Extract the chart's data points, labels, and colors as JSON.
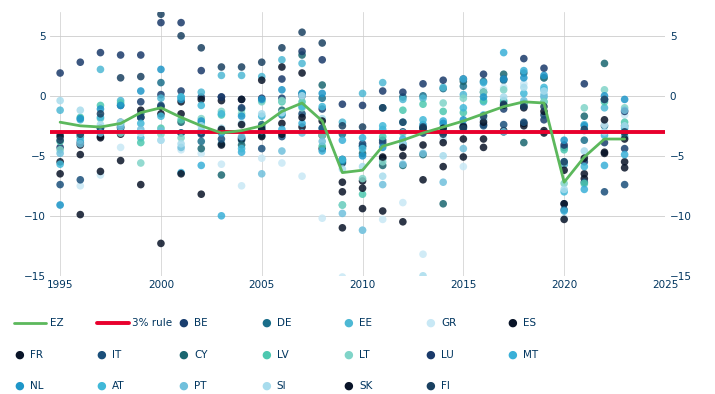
{
  "ylim": [
    -15,
    7
  ],
  "xlim": [
    1994.5,
    2025
  ],
  "yticks": [
    -15,
    -10,
    -5,
    0,
    5
  ],
  "xticks": [
    1995,
    2000,
    2005,
    2010,
    2015,
    2020,
    2025
  ],
  "rule_value": -3,
  "background_color": "#ffffff",
  "text_color": "#00355f",
  "fiscal_data": {
    "BE": {
      "years": [
        1995,
        1996,
        1997,
        1998,
        1999,
        2000,
        2001,
        2002,
        2003,
        2004,
        2005,
        2006,
        2007,
        2008,
        2009,
        2010,
        2011,
        2012,
        2013,
        2014,
        2015,
        2016,
        2017,
        2018,
        2019,
        2020,
        2021,
        2022,
        2023
      ],
      "values": [
        -4.3,
        -3.9,
        -3.1,
        -0.8,
        -0.5,
        0.1,
        0.4,
        -0.1,
        -0.1,
        -0.3,
        -2.6,
        -0.2,
        0.0,
        -1.1,
        -5.6,
        -4.0,
        -3.9,
        -4.2,
        -3.1,
        -3.1,
        -2.5,
        -2.4,
        -1.1,
        -0.8,
        -2.0,
        -9.0,
        -5.5,
        -3.9,
        -4.4
      ]
    },
    "DE": {
      "years": [
        1995,
        1996,
        1997,
        1998,
        1999,
        2000,
        2001,
        2002,
        2003,
        2004,
        2005,
        2006,
        2007,
        2008,
        2009,
        2010,
        2011,
        2012,
        2013,
        2014,
        2015,
        2016,
        2017,
        2018,
        2019,
        2020,
        2021,
        2022,
        2023
      ],
      "values": [
        -3.2,
        -3.4,
        -2.7,
        -2.2,
        -1.5,
        1.1,
        -3.1,
        -3.8,
        -4.0,
        -3.7,
        -3.3,
        -1.6,
        0.2,
        -0.2,
        -3.2,
        -4.2,
        -1.0,
        -0.1,
        0.0,
        0.6,
        0.8,
        1.2,
        1.3,
        1.9,
        1.5,
        -4.3,
        -3.7,
        -2.5,
        -2.5
      ]
    },
    "EE": {
      "years": [
        1995,
        1996,
        1997,
        1998,
        1999,
        2000,
        2001,
        2002,
        2003,
        2004,
        2005,
        2006,
        2007,
        2008,
        2009,
        2010,
        2011,
        2012,
        2013,
        2014,
        2015,
        2016,
        2017,
        2018,
        2019,
        2020,
        2021,
        2022,
        2023
      ],
      "values": [
        -1.2,
        -2.0,
        2.2,
        -0.4,
        -3.5,
        -0.2,
        -0.1,
        0.3,
        1.7,
        1.7,
        1.6,
        3.0,
        2.7,
        -2.7,
        -2.2,
        0.2,
        1.1,
        -0.3,
        -0.2,
        0.7,
        0.1,
        -0.5,
        -0.4,
        -0.6,
        -0.1,
        -5.5,
        -2.4,
        -1.0,
        -3.4
      ]
    },
    "GR": {
      "years": [
        1995,
        1996,
        1997,
        1998,
        1999,
        2000,
        2001,
        2002,
        2003,
        2004,
        2005,
        2006,
        2007,
        2008,
        2009,
        2010,
        2011,
        2012,
        2013,
        2014,
        2015,
        2016,
        2017,
        2018,
        2019,
        2020,
        2021,
        2022,
        2023
      ],
      "values": [
        -9.1,
        -7.5,
        -6.6,
        -4.3,
        -3.1,
        -3.7,
        -4.5,
        -4.8,
        -5.7,
        -7.5,
        -5.2,
        -5.6,
        -6.7,
        -10.2,
        -15.1,
        -11.2,
        -10.3,
        -8.9,
        -13.2,
        -3.6,
        -5.9,
        0.5,
        0.7,
        1.0,
        1.5,
        -10.2,
        -7.4,
        -2.4,
        -1.6
      ]
    },
    "ES": {
      "years": [
        1995,
        1996,
        1997,
        1998,
        1999,
        2000,
        2001,
        2002,
        2003,
        2004,
        2005,
        2006,
        2007,
        2008,
        2009,
        2010,
        2011,
        2012,
        2013,
        2014,
        2015,
        2016,
        2017,
        2018,
        2019,
        2020,
        2021,
        2022,
        2023
      ],
      "values": [
        -6.5,
        -4.9,
        -3.4,
        -3.2,
        -1.2,
        -0.9,
        -0.5,
        -0.3,
        -0.4,
        -0.3,
        1.3,
        2.4,
        1.9,
        -4.4,
        -11.0,
        -9.4,
        -9.6,
        -10.5,
        -7.0,
        -5.9,
        -5.1,
        -4.3,
        -3.0,
        -2.5,
        -2.9,
        -10.3,
        -6.9,
        -4.8,
        -3.6
      ]
    },
    "FR": {
      "years": [
        1995,
        1996,
        1997,
        1998,
        1999,
        2000,
        2001,
        2002,
        2003,
        2004,
        2005,
        2006,
        2007,
        2008,
        2009,
        2010,
        2011,
        2012,
        2013,
        2014,
        2015,
        2016,
        2017,
        2018,
        2019,
        2020,
        2021,
        2022,
        2023
      ],
      "values": [
        -5.5,
        -4.1,
        -3.5,
        -2.6,
        -1.8,
        -1.5,
        -1.5,
        -3.1,
        -4.1,
        -3.6,
        -3.4,
        -2.3,
        -2.6,
        -3.3,
        -7.2,
        -7.1,
        -5.2,
        -5.0,
        -4.1,
        -3.9,
        -3.6,
        -3.6,
        -2.9,
        -2.3,
        -3.1,
        -9.0,
        -6.5,
        -4.7,
        -5.5
      ]
    },
    "IT": {
      "years": [
        1995,
        1996,
        1997,
        1998,
        1999,
        2000,
        2001,
        2002,
        2003,
        2004,
        2005,
        2006,
        2007,
        2008,
        2009,
        2010,
        2011,
        2012,
        2013,
        2014,
        2015,
        2016,
        2017,
        2018,
        2019,
        2020,
        2021,
        2022,
        2023
      ],
      "values": [
        -7.4,
        -7.0,
        -2.7,
        -2.7,
        -1.8,
        -0.8,
        -3.1,
        -3.2,
        -3.6,
        -3.5,
        -4.4,
        -3.4,
        -1.5,
        -2.7,
        -5.3,
        -4.2,
        -3.7,
        -3.0,
        -2.9,
        -3.0,
        -2.6,
        -2.5,
        -2.4,
        -2.2,
        -1.6,
        -9.5,
        -7.2,
        -8.0,
        -7.4
      ]
    },
    "CY": {
      "years": [
        2001,
        2002,
        2003,
        2004,
        2005,
        2006,
        2007,
        2008,
        2009,
        2010,
        2011,
        2012,
        2013,
        2014,
        2015,
        2016,
        2017,
        2018,
        2019,
        2020,
        2021,
        2022,
        2023
      ],
      "values": [
        -2.2,
        -4.4,
        -6.6,
        -4.1,
        -2.4,
        -1.2,
        3.4,
        0.9,
        -5.5,
        -4.8,
        -5.8,
        -5.8,
        -4.9,
        -9.0,
        1.2,
        0.3,
        1.8,
        -3.9,
        1.5,
        -5.7,
        -1.7,
        2.7,
        -3.1
      ]
    },
    "LV": {
      "years": [
        1995,
        1996,
        1997,
        1998,
        1999,
        2000,
        2001,
        2002,
        2003,
        2004,
        2005,
        2006,
        2007,
        2008,
        2009,
        2010,
        2011,
        2012,
        2013,
        2014,
        2015,
        2016,
        2017,
        2018,
        2019,
        2020,
        2021,
        2022,
        2023
      ],
      "values": [
        -3.8,
        -1.8,
        -0.8,
        -0.6,
        -3.9,
        -2.7,
        -2.0,
        -2.3,
        -1.6,
        -1.1,
        -0.4,
        -0.5,
        -0.5,
        -4.2,
        -9.1,
        -8.2,
        -3.4,
        -1.2,
        -0.7,
        -1.3,
        -1.4,
        -0.4,
        -0.5,
        -0.7,
        -0.5,
        -4.5,
        -7.3,
        -0.5,
        -2.2
      ]
    },
    "LT": {
      "years": [
        1995,
        1996,
        1997,
        1998,
        1999,
        2000,
        2001,
        2002,
        2003,
        2004,
        2005,
        2006,
        2007,
        2008,
        2009,
        2010,
        2011,
        2012,
        2013,
        2014,
        2015,
        2016,
        2017,
        2018,
        2019,
        2020,
        2021,
        2022,
        2023
      ],
      "values": [
        -4.5,
        -3.3,
        -1.9,
        -3.1,
        -5.6,
        -3.2,
        -3.5,
        -1.9,
        -1.3,
        -1.5,
        -0.5,
        -0.4,
        -1.0,
        -3.3,
        -9.1,
        -6.9,
        -5.5,
        -3.1,
        -2.6,
        -0.6,
        -0.2,
        0.3,
        0.5,
        -0.8,
        -0.5,
        -7.3,
        -1.0,
        0.5,
        -1.0
      ]
    },
    "LU": {
      "years": [
        1995,
        1996,
        1997,
        1998,
        1999,
        2000,
        2001,
        2002,
        2003,
        2004,
        2005,
        2006,
        2007,
        2008,
        2009,
        2010,
        2011,
        2012,
        2013,
        2014,
        2015,
        2016,
        2017,
        2018,
        2019,
        2020,
        2021,
        2022,
        2023
      ],
      "values": [
        1.9,
        2.8,
        3.6,
        3.4,
        3.4,
        6.1,
        6.1,
        2.1,
        -0.1,
        -1.0,
        -0.2,
        1.4,
        3.7,
        3.0,
        -0.7,
        -0.8,
        0.4,
        0.3,
        1.0,
        1.3,
        1.4,
        1.8,
        1.4,
        3.1,
        2.3,
        -4.1,
        1.0,
        -0.3,
        -1.3
      ]
    },
    "MT": {
      "years": [
        2001,
        2002,
        2003,
        2004,
        2005,
        2006,
        2007,
        2008,
        2009,
        2010,
        2011,
        2012,
        2013,
        2014,
        2015,
        2016,
        2017,
        2018,
        2019,
        2020,
        2021,
        2022,
        2023
      ],
      "values": [
        -6.4,
        -5.8,
        -10.0,
        -4.7,
        -2.9,
        -2.8,
        -2.3,
        -4.6,
        -3.7,
        -3.5,
        -2.8,
        -3.6,
        -2.7,
        -2.1,
        1.4,
        1.1,
        3.6,
        2.1,
        0.5,
        -9.6,
        -7.8,
        -5.8,
        -4.9
      ]
    },
    "NL": {
      "years": [
        1995,
        1996,
        1997,
        1998,
        1999,
        2000,
        2001,
        2002,
        2003,
        2004,
        2005,
        2006,
        2007,
        2008,
        2009,
        2010,
        2011,
        2012,
        2013,
        2014,
        2015,
        2016,
        2017,
        2018,
        2019,
        2020,
        2021,
        2022,
        2023
      ],
      "values": [
        -9.1,
        -1.9,
        -1.1,
        -0.8,
        0.4,
        2.2,
        -0.3,
        -2.1,
        -3.1,
        -1.7,
        -0.3,
        0.5,
        0.2,
        0.2,
        -5.4,
        -5.0,
        -4.3,
        -4.0,
        -2.4,
        -2.3,
        -2.0,
        -0.1,
        1.4,
        1.5,
        1.7,
        -3.7,
        -2.5,
        0.0,
        -0.3
      ]
    },
    "AT": {
      "years": [
        1995,
        1996,
        1997,
        1998,
        1999,
        2000,
        2001,
        2002,
        2003,
        2004,
        2005,
        2006,
        2007,
        2008,
        2009,
        2010,
        2011,
        2012,
        2013,
        2014,
        2015,
        2016,
        2017,
        2018,
        2019,
        2020,
        2021,
        2022,
        2023
      ],
      "values": [
        -5.7,
        -3.7,
        -1.8,
        -2.4,
        -2.3,
        -1.7,
        -0.1,
        -0.8,
        -1.5,
        -4.4,
        -1.7,
        -1.5,
        -0.9,
        -0.9,
        -5.3,
        -4.4,
        -2.5,
        -2.2,
        -2.0,
        -2.7,
        -1.0,
        -1.6,
        -0.8,
        0.2,
        0.7,
        -8.0,
        -5.9,
        -3.3,
        -2.7
      ]
    },
    "PT": {
      "years": [
        1995,
        1996,
        1997,
        1998,
        1999,
        2000,
        2001,
        2002,
        2003,
        2004,
        2005,
        2006,
        2007,
        2008,
        2009,
        2010,
        2011,
        2012,
        2013,
        2014,
        2015,
        2016,
        2017,
        2018,
        2019,
        2020,
        2021,
        2022,
        2023
      ],
      "values": [
        -4.8,
        -4.0,
        -3.1,
        -2.6,
        -2.8,
        -2.9,
        -4.3,
        -2.9,
        -2.9,
        -3.4,
        -6.5,
        -4.6,
        -3.1,
        -3.8,
        -9.8,
        -11.2,
        -7.4,
        -5.7,
        -4.8,
        -7.2,
        -4.4,
        -2.0,
        -3.0,
        -0.4,
        0.1,
        -5.7,
        -2.9,
        -0.3,
        -1.2
      ]
    },
    "SI": {
      "years": [
        1995,
        1996,
        1997,
        1998,
        1999,
        2000,
        2001,
        2002,
        2003,
        2004,
        2005,
        2006,
        2007,
        2008,
        2009,
        2010,
        2011,
        2012,
        2013,
        2014,
        2015,
        2016,
        2017,
        2018,
        2019,
        2020,
        2021,
        2022,
        2023
      ],
      "values": [
        -0.4,
        -1.2,
        -2.4,
        -2.2,
        -3.1,
        -3.7,
        -4.0,
        -2.5,
        -2.7,
        -2.3,
        -1.5,
        -1.4,
        0.0,
        -1.9,
        -6.1,
        -5.9,
        -6.7,
        -4.0,
        -15.0,
        -5.0,
        -2.8,
        -1.9,
        -0.1,
        0.7,
        0.4,
        -7.8,
        -4.6,
        -3.0,
        -2.5
      ]
    },
    "SK": {
      "years": [
        1995,
        1996,
        1997,
        1998,
        1999,
        2000,
        2001,
        2002,
        2003,
        2004,
        2005,
        2006,
        2007,
        2008,
        2009,
        2010,
        2011,
        2012,
        2013,
        2014,
        2015,
        2016,
        2017,
        2018,
        2019,
        2020,
        2021,
        2022,
        2023
      ],
      "values": [
        -3.4,
        -9.9,
        -6.3,
        -5.4,
        -7.4,
        -12.3,
        -6.5,
        -8.2,
        -2.8,
        -2.4,
        -2.8,
        -3.2,
        -1.8,
        -2.1,
        -8.0,
        -7.7,
        -5.1,
        -4.3,
        -2.7,
        -2.7,
        -2.6,
        -2.2,
        -0.8,
        -1.0,
        -1.3,
        -6.2,
        -5.2,
        -2.0,
        -6.0
      ]
    },
    "FI": {
      "years": [
        1995,
        1996,
        1997,
        1998,
        1999,
        2000,
        2001,
        2002,
        2003,
        2004,
        2005,
        2006,
        2007,
        2008,
        2009,
        2010,
        2011,
        2012,
        2013,
        2014,
        2015,
        2016,
        2017,
        2018,
        2019,
        2020,
        2021,
        2022,
        2023
      ],
      "values": [
        -3.7,
        -3.2,
        -1.5,
        1.5,
        1.6,
        6.8,
        5.0,
        4.0,
        2.4,
        2.4,
        2.8,
        4.0,
        5.3,
        4.4,
        -2.5,
        -2.6,
        -1.0,
        -2.2,
        -2.6,
        -3.2,
        -2.7,
        -1.7,
        -0.7,
        -0.9,
        -0.9,
        -5.5,
        -2.8,
        -0.3,
        -3.0
      ]
    }
  },
  "ez_data": {
    "years": [
      1995,
      1996,
      1997,
      1998,
      1999,
      2000,
      2001,
      2002,
      2003,
      2004,
      2005,
      2006,
      2007,
      2008,
      2009,
      2010,
      2011,
      2012,
      2013,
      2014,
      2015,
      2016,
      2017,
      2018,
      2019,
      2020,
      2021,
      2022,
      2023
    ],
    "values": [
      -2.2,
      -2.5,
      -2.6,
      -2.3,
      -1.4,
      -1.0,
      -1.8,
      -2.5,
      -3.1,
      -2.9,
      -2.5,
      -1.3,
      -0.6,
      -2.1,
      -6.4,
      -6.2,
      -4.2,
      -3.7,
      -3.1,
      -2.6,
      -2.1,
      -1.5,
      -0.9,
      -0.5,
      -0.6,
      -7.2,
      -5.1,
      -3.6,
      -3.6
    ]
  },
  "country_colors": {
    "BE": "#1a3f6f",
    "DE": "#1a6e8a",
    "EE": "#4db8d4",
    "GR": "#c8e8f5",
    "ES": "#091428",
    "FR": "#091428",
    "IT": "#1a4f7a",
    "CY": "#1a6670",
    "LV": "#4dc8b0",
    "LT": "#80d4c8",
    "LU": "#1a3a6a",
    "MT": "#3ab0d8",
    "NL": "#1e96c8",
    "AT": "#40b8d8",
    "PT": "#70c0dc",
    "SI": "#a8dced",
    "SK": "#091428",
    "FI": "#1a4060"
  },
  "ez_color": "#5cb85c",
  "rule_color": "#e8002d",
  "legend_rows": [
    [
      {
        "label": "EZ",
        "type": "line",
        "color": "#5cb85c"
      },
      {
        "label": "3% rule",
        "type": "line",
        "color": "#e8002d"
      },
      {
        "label": "BE",
        "type": "dot",
        "color": "#1a3f6f"
      },
      {
        "label": "DE",
        "type": "dot",
        "color": "#1a6e8a"
      },
      {
        "label": "EE",
        "type": "dot",
        "color": "#4db8d4"
      },
      {
        "label": "GR",
        "type": "dot",
        "color": "#c8e8f5"
      },
      {
        "label": "ES",
        "type": "dot",
        "color": "#091428"
      }
    ],
    [
      {
        "label": "FR",
        "type": "dot",
        "color": "#091428"
      },
      {
        "label": "IT",
        "type": "dot",
        "color": "#1a4f7a"
      },
      {
        "label": "CY",
        "type": "dot",
        "color": "#1a6670"
      },
      {
        "label": "LV",
        "type": "dot",
        "color": "#4dc8b0"
      },
      {
        "label": "LT",
        "type": "dot",
        "color": "#80d4c8"
      },
      {
        "label": "LU",
        "type": "dot",
        "color": "#1a3a6a"
      },
      {
        "label": "MT",
        "type": "dot",
        "color": "#3ab0d8"
      }
    ],
    [
      {
        "label": "NL",
        "type": "dot",
        "color": "#1e96c8"
      },
      {
        "label": "AT",
        "type": "dot",
        "color": "#40b8d8"
      },
      {
        "label": "PT",
        "type": "dot",
        "color": "#70c0dc"
      },
      {
        "label": "SI",
        "type": "dot",
        "color": "#a8dced"
      },
      {
        "label": "SK",
        "type": "dot",
        "color": "#091428"
      },
      {
        "label": "FI",
        "type": "dot",
        "color": "#1a4060"
      }
    ]
  ]
}
